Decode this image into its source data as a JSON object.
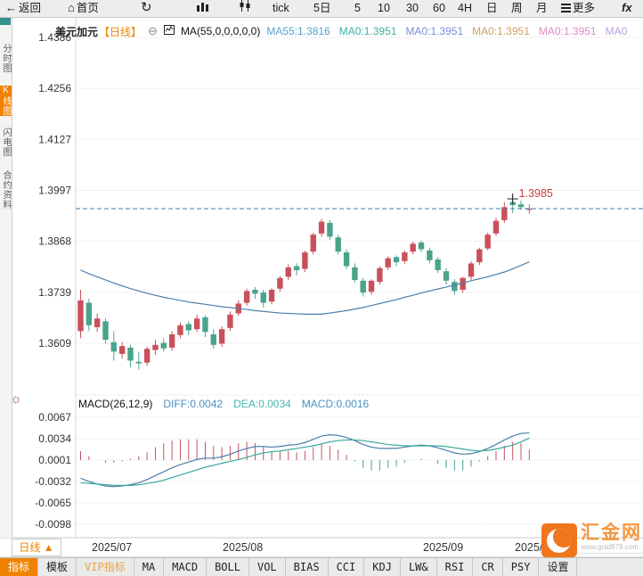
{
  "toolbar": {
    "items": [
      {
        "label": "返回",
        "icon": "back-arrow"
      },
      {
        "label": "首页",
        "icon": "home"
      },
      {
        "label": "",
        "icon": "refresh"
      },
      {
        "label": "",
        "icon": "bar-chart"
      },
      {
        "label": "",
        "icon": "candlestick"
      },
      {
        "label": "tick",
        "icon": ""
      },
      {
        "label": "5日",
        "icon": ""
      },
      {
        "label": "5",
        "icon": ""
      },
      {
        "label": "10",
        "icon": ""
      },
      {
        "label": "30",
        "icon": ""
      },
      {
        "label": "60",
        "icon": ""
      },
      {
        "label": "4H",
        "icon": ""
      },
      {
        "label": "日",
        "icon": ""
      },
      {
        "label": "周",
        "icon": ""
      },
      {
        "label": "月",
        "icon": ""
      },
      {
        "label": "更多",
        "icon": "menu"
      },
      {
        "label": "fx",
        "icon": "fx"
      }
    ]
  },
  "sidebar": {
    "items": [
      {
        "label": "分时图",
        "active": false
      },
      {
        "label": "K线图",
        "active": true
      },
      {
        "label": "闪电图",
        "active": false
      },
      {
        "label": "合约资料",
        "active": false
      }
    ]
  },
  "chart_header": {
    "symbol": "美元加元",
    "period_tag": "【日线】",
    "collapse_icon": "⊖",
    "ma_formula": "MA(55,0,0,0,0,0)",
    "ma_values": [
      {
        "label": "MA55:1.3816",
        "color": "#56a0d3"
      },
      {
        "label": "MA0:1.3951",
        "color": "#3fae9e"
      },
      {
        "label": "MA0:1.3951",
        "color": "#7b8fd4"
      },
      {
        "label": "MA0:1.3951",
        "color": "#cf9e67"
      },
      {
        "label": "MA0:1.3951",
        "color": "#e08bc1"
      },
      {
        "label": "MA0",
        "color": "#b9a0dc"
      }
    ]
  },
  "macd_header": {
    "formula": "MACD(26,12,9)",
    "diff_label": "DIFF:0.0042",
    "dea_label": "DEA:0.0034",
    "macd_label": "MACD:0.0016",
    "diff_color": "#4a90c4",
    "dea_color": "#45b8ac",
    "macd_color": "#4a90c4"
  },
  "axis_row": {
    "period_selector": "日线 ▲"
  },
  "tabs": {
    "items": [
      "指标",
      "模板",
      "VIP指标",
      "MA",
      "MACD",
      "BOLL",
      "VOL",
      "BIAS",
      "CCI",
      "KDJ",
      "LW&",
      "RSI",
      "CR",
      "PSY",
      "设置"
    ],
    "active_index": 0,
    "vip_index": 2
  },
  "logo": {
    "name": "汇金网",
    "url": "www.gold678.com"
  },
  "chart_data": {
    "type": "candlestick+macd",
    "symbol": "美元加元",
    "period": "日线",
    "main_panel": {
      "y_ticks": [
        1.4386,
        1.4256,
        1.4127,
        1.3997,
        1.3868,
        1.3739,
        1.3609
      ],
      "ylim": [
        1.348,
        1.4386
      ],
      "grid": true,
      "last_price": 1.3951,
      "crosshair": {
        "price": 1.3985,
        "label": "1.3985"
      },
      "candles_ohlc": [
        [
          1.364,
          1.3745,
          1.3622,
          1.3718
        ],
        [
          1.3712,
          1.3722,
          1.364,
          1.3655
        ],
        [
          1.365,
          1.3685,
          1.3638,
          1.3672
        ],
        [
          1.3665,
          1.3672,
          1.3608,
          1.3618
        ],
        [
          1.3612,
          1.364,
          1.3565,
          1.3588
        ],
        [
          1.3582,
          1.3612,
          1.357,
          1.3602
        ],
        [
          1.3598,
          1.3605,
          1.3548,
          1.3565
        ],
        [
          1.3562,
          1.3588,
          1.3542,
          1.3558
        ],
        [
          1.356,
          1.36,
          1.3552,
          1.3595
        ],
        [
          1.3592,
          1.3618,
          1.358,
          1.3605
        ],
        [
          1.361,
          1.3622,
          1.3588,
          1.3596
        ],
        [
          1.3598,
          1.364,
          1.359,
          1.3632
        ],
        [
          1.363,
          1.3662,
          1.3622,
          1.3655
        ],
        [
          1.3658,
          1.3665,
          1.363,
          1.3642
        ],
        [
          1.3645,
          1.3682,
          1.3638,
          1.3672
        ],
        [
          1.3675,
          1.368,
          1.3625,
          1.3638
        ],
        [
          1.3632,
          1.3645,
          1.3595,
          1.3605
        ],
        [
          1.3608,
          1.3652,
          1.36,
          1.3645
        ],
        [
          1.3648,
          1.369,
          1.364,
          1.3682
        ],
        [
          1.3685,
          1.3718,
          1.3678,
          1.371
        ],
        [
          1.3712,
          1.3748,
          1.3705,
          1.3742
        ],
        [
          1.3745,
          1.3752,
          1.3722,
          1.3735
        ],
        [
          1.3738,
          1.3745,
          1.37,
          1.3712
        ],
        [
          1.3715,
          1.375,
          1.3708,
          1.3745
        ],
        [
          1.3748,
          1.378,
          1.374,
          1.3775
        ],
        [
          1.3778,
          1.381,
          1.377,
          1.3802
        ],
        [
          1.3805,
          1.3812,
          1.3782,
          1.3795
        ],
        [
          1.3798,
          1.3845,
          1.379,
          1.384
        ],
        [
          1.3842,
          1.389,
          1.3835,
          1.3885
        ],
        [
          1.3888,
          1.3925,
          1.388,
          1.3918
        ],
        [
          1.3915,
          1.3922,
          1.3872,
          1.388
        ],
        [
          1.3878,
          1.3885,
          1.3835,
          1.3842
        ],
        [
          1.384,
          1.3848,
          1.3798,
          1.3805
        ],
        [
          1.3802,
          1.3812,
          1.3762,
          1.377
        ],
        [
          1.3768,
          1.3775,
          1.3728,
          1.3738
        ],
        [
          1.374,
          1.3772,
          1.3732,
          1.3768
        ],
        [
          1.3765,
          1.3805,
          1.3758,
          1.38
        ],
        [
          1.3802,
          1.383,
          1.3795,
          1.3825
        ],
        [
          1.3828,
          1.3832,
          1.3805,
          1.3815
        ],
        [
          1.3818,
          1.3845,
          1.381,
          1.384
        ],
        [
          1.3842,
          1.3868,
          1.3835,
          1.3862
        ],
        [
          1.3865,
          1.387,
          1.384,
          1.3848
        ],
        [
          1.3845,
          1.3852,
          1.3812,
          1.382
        ],
        [
          1.3822,
          1.3828,
          1.3788,
          1.3795
        ],
        [
          1.3792,
          1.38,
          1.3758,
          1.3768
        ],
        [
          1.3765,
          1.3772,
          1.3732,
          1.3742
        ],
        [
          1.3745,
          1.3778,
          1.3738,
          1.3775
        ],
        [
          1.3778,
          1.3818,
          1.377,
          1.3812
        ],
        [
          1.3815,
          1.3852,
          1.3808,
          1.3848
        ],
        [
          1.385,
          1.389,
          1.3845,
          1.3885
        ],
        [
          1.3888,
          1.3928,
          1.3882,
          1.392
        ],
        [
          1.3922,
          1.3968,
          1.3915,
          1.3955
        ],
        [
          1.3968,
          1.3985,
          1.394,
          1.396
        ],
        [
          1.3962,
          1.3972,
          1.3948,
          1.3955
        ],
        [
          1.3948,
          1.3962,
          1.3938,
          1.3951
        ]
      ],
      "ma55_current": 1.3816,
      "ma55": [
        1.3795,
        1.3786,
        1.3778,
        1.377,
        1.3762,
        1.3755,
        1.3748,
        1.3742,
        1.3736,
        1.3731,
        1.3726,
        1.3722,
        1.3718,
        1.3714,
        1.3711,
        1.3708,
        1.3705,
        1.3702,
        1.37,
        1.3697,
        1.3695,
        1.3692,
        1.369,
        1.3688,
        1.3686,
        1.3685,
        1.3684,
        1.3683,
        1.3683,
        1.3683,
        1.3686,
        1.3689,
        1.3692,
        1.3696,
        1.37,
        1.3705,
        1.371,
        1.3715,
        1.372,
        1.3726,
        1.3731,
        1.3737,
        1.3742,
        1.3747,
        1.3752,
        1.3757,
        1.3762,
        1.3768,
        1.3773,
        1.3778,
        1.3784,
        1.379,
        1.3798,
        1.3807,
        1.3816
      ]
    },
    "macd_panel": {
      "params": [
        26,
        12,
        9
      ],
      "diff_current": 0.0042,
      "dea_current": 0.0034,
      "macd_current": 0.0016,
      "y_ticks": [
        0.0067,
        0.0034,
        0.0001,
        -0.0032,
        -0.0065,
        -0.0098
      ],
      "diff": [
        -0.0028,
        -0.0033,
        -0.0037,
        -0.004,
        -0.0041,
        -0.004,
        -0.0038,
        -0.0035,
        -0.003,
        -0.0024,
        -0.0018,
        -0.0012,
        -0.0007,
        -0.0003,
        0.0001,
        0.0003,
        0.0003,
        0.0005,
        0.0009,
        0.0014,
        0.0018,
        0.0021,
        0.0021,
        0.002,
        0.0021,
        0.0023,
        0.0024,
        0.0027,
        0.0032,
        0.0037,
        0.0039,
        0.0038,
        0.0035,
        0.003,
        0.0024,
        0.002,
        0.0018,
        0.0018,
        0.0018,
        0.002,
        0.0022,
        0.0023,
        0.0022,
        0.0019,
        0.0015,
        0.0011,
        0.0009,
        0.001,
        0.0013,
        0.0018,
        0.0024,
        0.0031,
        0.0037,
        0.0041,
        0.0042
      ],
      "dea": [
        -0.0035,
        -0.0036,
        -0.0037,
        -0.0038,
        -0.0039,
        -0.0039,
        -0.0039,
        -0.0038,
        -0.0036,
        -0.0034,
        -0.0031,
        -0.0027,
        -0.0023,
        -0.0019,
        -0.0015,
        -0.0011,
        -0.0008,
        -0.0005,
        -0.0002,
        0.0001,
        0.0004,
        0.0008,
        0.0011,
        0.0013,
        0.0014,
        0.0016,
        0.0018,
        0.002,
        0.0022,
        0.0025,
        0.0028,
        0.003,
        0.0031,
        0.0031,
        0.003,
        0.0028,
        0.0026,
        0.0024,
        0.0023,
        0.0022,
        0.0022,
        0.0022,
        0.0022,
        0.0022,
        0.0021,
        0.0019,
        0.0017,
        0.0015,
        0.0014,
        0.0015,
        0.0017,
        0.002,
        0.0023,
        0.0028,
        0.0034
      ]
    },
    "x_labels": [
      {
        "label": "2025/07",
        "x": 103
      },
      {
        "label": "2025/08",
        "x": 250
      },
      {
        "label": "2025/09",
        "x": 475
      },
      {
        "label": "2025/10",
        "x": 578
      }
    ],
    "colors": {
      "up": "#c9505a",
      "down": "#4aa38b",
      "ma55": "#4d7ea8",
      "diff": "#4d7ea8",
      "dea": "#3aa89d",
      "price_line": "#3b7fad",
      "accent": "#f08200",
      "crosshair_label": "#cc3b3b",
      "grid": "#dadada",
      "axis_text": "#333333"
    }
  }
}
